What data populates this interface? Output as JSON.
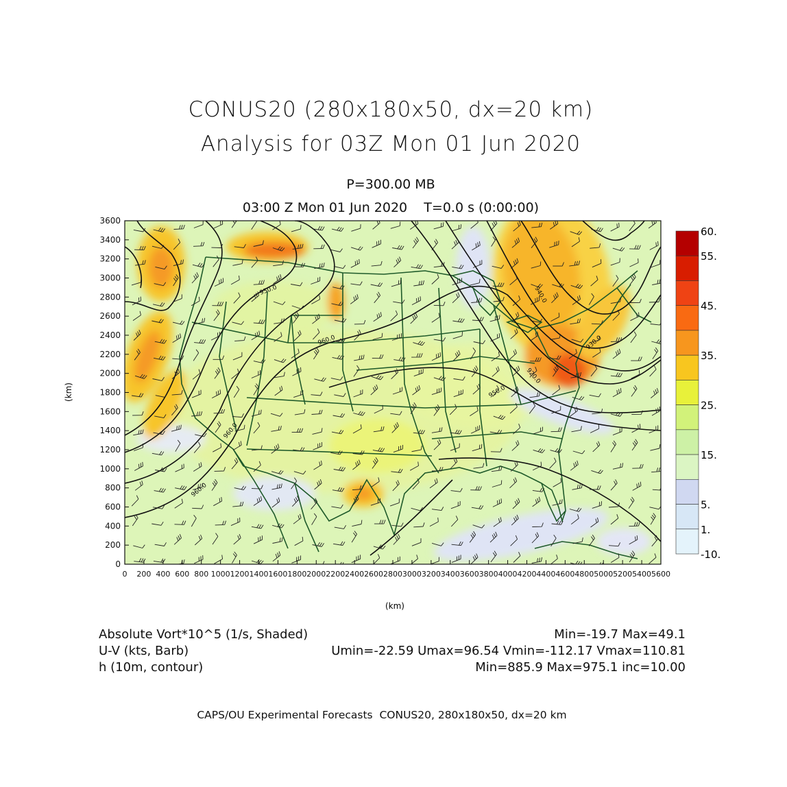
{
  "header": {
    "title_line1": "CONUS20 (280x180x50, dx=20 km)",
    "title_line2": "Analysis for 03Z Mon 01 Jun 2020",
    "level": "P=300.00 MB",
    "valid_time": "03:00 Z Mon 01 Jun 2020    T=0.0 s (0:00:00)"
  },
  "map": {
    "x_axis_label": "(km)",
    "y_axis_label": "(km)",
    "x_ticks": [
      0,
      200,
      400,
      600,
      800,
      1000,
      1200,
      1400,
      1600,
      1800,
      2000,
      2200,
      2400,
      2600,
      2800,
      3000,
      3200,
      3400,
      3600,
      3800,
      4000,
      4200,
      4400,
      4600,
      4800,
      5000,
      5200,
      5400,
      5600
    ],
    "y_ticks": [
      0,
      200,
      400,
      600,
      800,
      1000,
      1200,
      1400,
      1600,
      1800,
      2000,
      2200,
      2400,
      2600,
      2800,
      3000,
      3200,
      3400,
      3600
    ],
    "x_range": [
      0,
      5600
    ],
    "y_range": [
      0,
      3600
    ],
    "contour_labels": [
      "960.0",
      "950.0",
      "960.0",
      "950.0",
      "940.0",
      "930.0",
      "920.0",
      "960.0"
    ],
    "colors": {
      "background_field": "#ddf5b8",
      "map_lines": "#1f5a2a",
      "contours": "#111111",
      "vort_high": "#f5a020",
      "vort_low": "#dfe4f5"
    }
  },
  "colorbar": {
    "labels": [
      "60.",
      "55.",
      "45.",
      "35.",
      "25.",
      "15.",
      "5.",
      "1.",
      "-10."
    ],
    "colors": [
      "#b40000",
      "#d81d00",
      "#ef4314",
      "#f96a12",
      "#f7961e",
      "#f8c61f",
      "#e8f13a",
      "#d2f27a",
      "#cdf1a6",
      "#dbf5c3",
      "#d0d8f1",
      "#d7e7f6",
      "#e4f3fb"
    ]
  },
  "info": {
    "field1_name": "Absolute Vort*10^5 (1/s, Shaded)",
    "field1_stats": "Min=-19.7 Max=49.1",
    "field2_name": "U-V (kts, Barb)",
    "field2_stats": "Umin=-22.59 Umax=96.54 Vmin=-112.17 Vmax=110.81",
    "field3_name": "h (10m, contour)",
    "field3_stats": "Min=885.9 Max=975.1 inc=10.00"
  },
  "footer": "CAPS/OU Experimental Forecasts  CONUS20, 280x180x50, dx=20 km"
}
